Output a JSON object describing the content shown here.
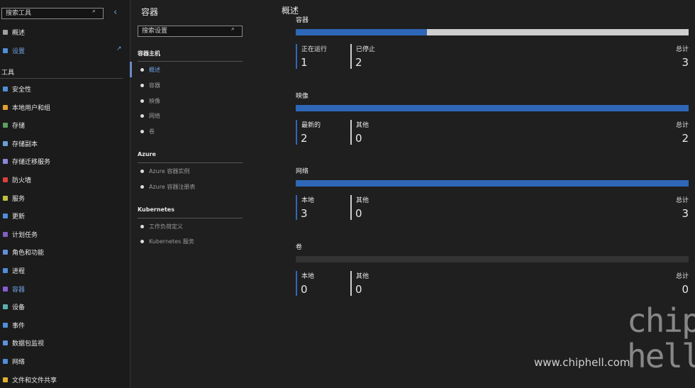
{
  "sidebar": {
    "search_placeholder": "搜索工具",
    "top_items": [
      "概述",
      "设置"
    ],
    "section": "工具",
    "tools": [
      "安全性",
      "本地用户和组",
      "存储",
      "存储副本",
      "存储迁移服务",
      "防火墙",
      "服务",
      "更新",
      "计划任务",
      "角色和功能",
      "进程",
      "容器",
      "设备",
      "事件",
      "数据包监视",
      "网络",
      "文件和文件共享"
    ],
    "active_tool": "容器"
  },
  "panel": {
    "title": "容器",
    "search_placeholder": "搜索设置",
    "groups": [
      {
        "title": "容器主机",
        "items": [
          "概述",
          "容器",
          "映像",
          "网络",
          "卷"
        ]
      },
      {
        "title": "Azure",
        "items": [
          "Azure 容器实例",
          "Azure 容器注册表"
        ]
      },
      {
        "title": "Kubernetes",
        "items": [
          "工作负荷定义",
          "Kubernetes 服务"
        ]
      }
    ]
  },
  "main": {
    "title": "概述",
    "cards": [
      {
        "title": "容器",
        "first": {
          "label": "正在运行",
          "value": 1
        },
        "second": {
          "label": "已停止",
          "value": 2
        },
        "total_label": "总计",
        "total": 3
      },
      {
        "title": "映像",
        "first": {
          "label": "最新的",
          "value": 2
        },
        "second": {
          "label": "其他",
          "value": 0
        },
        "total_label": "总计",
        "total": 2
      },
      {
        "title": "网络",
        "first": {
          "label": "本地",
          "value": 3
        },
        "second": {
          "label": "其他",
          "value": 0
        },
        "total_label": "总计",
        "total": 3
      },
      {
        "title": "卷",
        "first": {
          "label": "本地",
          "value": 0
        },
        "second": {
          "label": "其他",
          "value": 0
        },
        "total_label": "总计",
        "total": 0
      }
    ]
  },
  "watermark": {
    "url": "www.chiphell.com",
    "logo": [
      "chip",
      "hell"
    ]
  }
}
